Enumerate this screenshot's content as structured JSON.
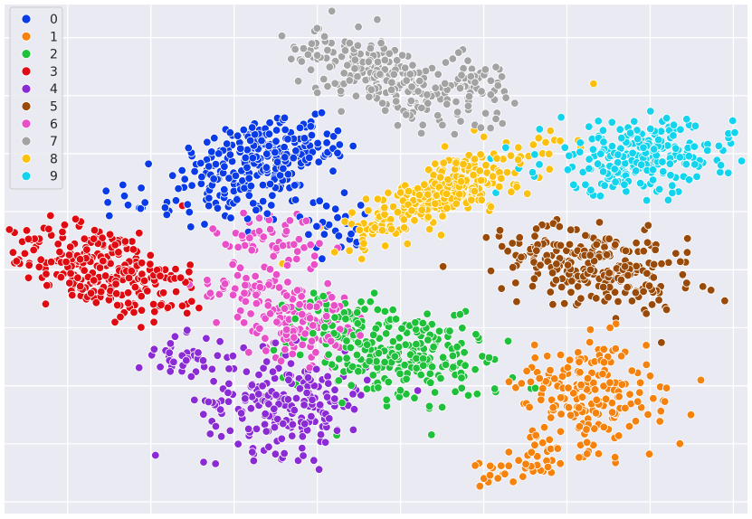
{
  "chart_data": {
    "type": "scatter",
    "title": "",
    "xlabel": "",
    "ylabel": "",
    "xlim": [
      0,
      100
    ],
    "ylim": [
      0,
      100
    ],
    "grid": true,
    "legend_position": "top-left",
    "series": [
      {
        "name": "0",
        "color": "#0a3be8",
        "clusters": [
          {
            "cx": 33.0,
            "cy": 69.5,
            "sx": 5.0,
            "sy": 4.0,
            "n": 170,
            "rot": 0.4
          },
          {
            "cx": 40.0,
            "cy": 71.5,
            "sx": 3.0,
            "sy": 3.0,
            "n": 70,
            "rot": 0.0
          },
          {
            "cx": 29.0,
            "cy": 61.0,
            "sx": 6.0,
            "sy": 3.0,
            "n": 60,
            "rot": 0.0
          },
          {
            "cx": 45.0,
            "cy": 57.0,
            "sx": 3.0,
            "sy": 3.0,
            "n": 25,
            "rot": 0.0
          }
        ]
      },
      {
        "name": "1",
        "color": "#f5820d",
        "clusters": [
          {
            "cx": 79.0,
            "cy": 23.0,
            "sx": 5.0,
            "sy": 5.0,
            "n": 190,
            "rot": 0.6
          },
          {
            "cx": 71.0,
            "cy": 10.0,
            "sx": 4.0,
            "sy": 1.5,
            "n": 45,
            "rot": 0.4
          }
        ]
      },
      {
        "name": "2",
        "color": "#1fc13a",
        "clusters": [
          {
            "cx": 53.0,
            "cy": 31.0,
            "sx": 6.5,
            "sy": 4.5,
            "n": 240,
            "rot": -0.3
          },
          {
            "cx": 45.0,
            "cy": 38.0,
            "sx": 3.0,
            "sy": 3.0,
            "n": 40,
            "rot": 0.0
          }
        ]
      },
      {
        "name": "3",
        "color": "#e00b12",
        "clusters": [
          {
            "cx": 11.5,
            "cy": 49.0,
            "sx": 6.0,
            "sy": 4.0,
            "n": 230,
            "rot": -0.2
          },
          {
            "cx": 20.5,
            "cy": 43.0,
            "sx": 3.5,
            "sy": 3.0,
            "n": 50,
            "rot": 0.0
          }
        ]
      },
      {
        "name": "4",
        "color": "#8b2bd6",
        "clusters": [
          {
            "cx": 38.0,
            "cy": 22.0,
            "sx": 5.5,
            "sy": 5.0,
            "n": 220,
            "rot": 0.0
          },
          {
            "cx": 24.0,
            "cy": 31.0,
            "sx": 3.0,
            "sy": 2.0,
            "n": 40,
            "rot": 0.0
          }
        ]
      },
      {
        "name": "5",
        "color": "#9a4a08",
        "clusters": [
          {
            "cx": 79.5,
            "cy": 48.5,
            "sx": 6.5,
            "sy": 3.8,
            "n": 260,
            "rot": -0.35
          }
        ]
      },
      {
        "name": "6",
        "color": "#e84fc8",
        "clusters": [
          {
            "cx": 39.0,
            "cy": 38.5,
            "sx": 3.5,
            "sy": 4.0,
            "n": 150,
            "rot": 0.0
          },
          {
            "cx": 36.0,
            "cy": 54.0,
            "sx": 4.0,
            "sy": 3.0,
            "n": 60,
            "rot": 0.0
          },
          {
            "cx": 31.0,
            "cy": 44.0,
            "sx": 3.0,
            "sy": 2.0,
            "n": 30,
            "rot": 0.0
          }
        ]
      },
      {
        "name": "7",
        "color": "#a3a3a3",
        "clusters": [
          {
            "cx": 50.5,
            "cy": 86.0,
            "sx": 6.5,
            "sy": 3.0,
            "n": 220,
            "rot": -0.7
          },
          {
            "cx": 63.0,
            "cy": 84.0,
            "sx": 3.0,
            "sy": 3.0,
            "n": 60,
            "rot": 0.0
          }
        ]
      },
      {
        "name": "8",
        "color": "#fcc10f",
        "clusters": [
          {
            "cx": 59.0,
            "cy": 63.0,
            "sx": 8.0,
            "sy": 2.6,
            "n": 290,
            "rot": 0.62
          }
        ]
      },
      {
        "name": "9",
        "color": "#12d4ee",
        "clusters": [
          {
            "cx": 85.5,
            "cy": 70.0,
            "sx": 6.5,
            "sy": 3.5,
            "n": 260,
            "rot": 0.05
          }
        ]
      }
    ]
  }
}
